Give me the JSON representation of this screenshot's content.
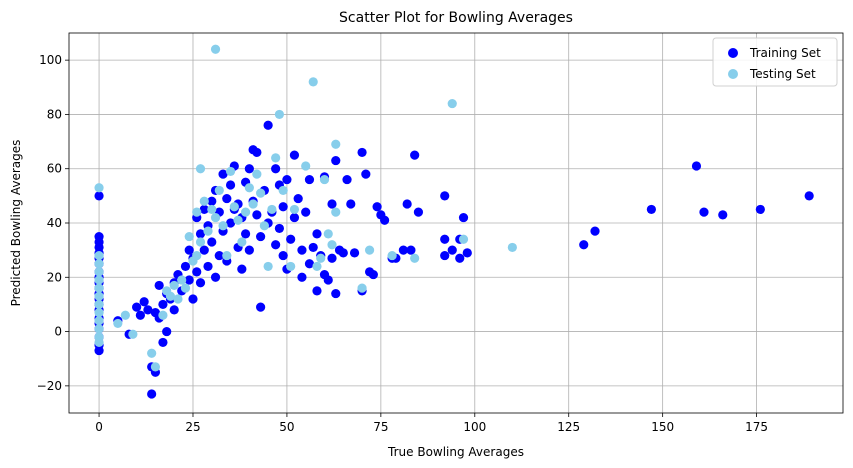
{
  "chart_data": {
    "type": "scatter",
    "title": "Scatter Plot for Bowling Averages",
    "xlabel": "True Bowling Averages",
    "ylabel": "Predicted Bowling Averages",
    "xlim": [
      -8,
      198
    ],
    "ylim": [
      -30,
      110
    ],
    "xticks": [
      0,
      25,
      50,
      75,
      100,
      125,
      150,
      175
    ],
    "yticks": [
      -20,
      0,
      20,
      40,
      60,
      80,
      100
    ],
    "grid": true,
    "legend_position": "top-right",
    "series": [
      {
        "name": "Training Set",
        "color": "#0000ff",
        "points": [
          [
            0,
            50
          ],
          [
            0,
            35
          ],
          [
            0,
            33
          ],
          [
            0,
            31
          ],
          [
            0,
            29
          ],
          [
            0,
            27
          ],
          [
            0,
            25
          ],
          [
            0,
            22
          ],
          [
            0,
            20
          ],
          [
            0,
            18
          ],
          [
            0,
            16
          ],
          [
            0,
            14
          ],
          [
            0,
            12
          ],
          [
            0,
            10
          ],
          [
            0,
            8
          ],
          [
            0,
            5
          ],
          [
            0,
            3
          ],
          [
            0,
            1
          ],
          [
            0,
            -2
          ],
          [
            0,
            -5
          ],
          [
            0,
            -7
          ],
          [
            5,
            4
          ],
          [
            8,
            -1
          ],
          [
            10,
            9
          ],
          [
            11,
            6
          ],
          [
            12,
            11
          ],
          [
            13,
            8
          ],
          [
            14,
            -13
          ],
          [
            14,
            -23
          ],
          [
            15,
            -15
          ],
          [
            15,
            7
          ],
          [
            16,
            5
          ],
          [
            16,
            17
          ],
          [
            17,
            -4
          ],
          [
            17,
            10
          ],
          [
            18,
            0
          ],
          [
            18,
            14
          ],
          [
            19,
            12
          ],
          [
            20,
            18
          ],
          [
            20,
            8
          ],
          [
            21,
            21
          ],
          [
            22,
            15
          ],
          [
            23,
            24
          ],
          [
            24,
            30
          ],
          [
            24,
            19
          ],
          [
            25,
            27
          ],
          [
            25,
            12
          ],
          [
            26,
            42
          ],
          [
            26,
            22
          ],
          [
            27,
            36
          ],
          [
            27,
            18
          ],
          [
            28,
            45
          ],
          [
            28,
            30
          ],
          [
            29,
            39
          ],
          [
            29,
            24
          ],
          [
            30,
            48
          ],
          [
            30,
            33
          ],
          [
            31,
            52
          ],
          [
            31,
            20
          ],
          [
            32,
            44
          ],
          [
            32,
            28
          ],
          [
            33,
            58
          ],
          [
            33,
            37
          ],
          [
            34,
            49
          ],
          [
            34,
            26
          ],
          [
            35,
            54
          ],
          [
            35,
            40
          ],
          [
            36,
            61
          ],
          [
            36,
            45
          ],
          [
            37,
            47
          ],
          [
            37,
            31
          ],
          [
            38,
            42
          ],
          [
            38,
            23
          ],
          [
            39,
            55
          ],
          [
            39,
            36
          ],
          [
            40,
            60
          ],
          [
            40,
            30
          ],
          [
            41,
            67
          ],
          [
            41,
            48
          ],
          [
            42,
            66
          ],
          [
            42,
            43
          ],
          [
            43,
            9
          ],
          [
            43,
            35
          ],
          [
            44,
            52
          ],
          [
            45,
            40
          ],
          [
            45,
            76
          ],
          [
            46,
            44
          ],
          [
            47,
            60
          ],
          [
            47,
            32
          ],
          [
            48,
            54
          ],
          [
            48,
            38
          ],
          [
            49,
            28
          ],
          [
            49,
            46
          ],
          [
            50,
            56
          ],
          [
            50,
            23
          ],
          [
            51,
            34
          ],
          [
            52,
            65
          ],
          [
            52,
            42
          ],
          [
            53,
            49
          ],
          [
            54,
            30
          ],
          [
            54,
            20
          ],
          [
            55,
            44
          ],
          [
            56,
            56
          ],
          [
            56,
            25
          ],
          [
            57,
            31
          ],
          [
            58,
            36
          ],
          [
            58,
            15
          ],
          [
            59,
            28
          ],
          [
            60,
            57
          ],
          [
            60,
            21
          ],
          [
            61,
            19
          ],
          [
            62,
            47
          ],
          [
            62,
            27
          ],
          [
            63,
            63
          ],
          [
            63,
            14
          ],
          [
            64,
            30
          ],
          [
            65,
            29
          ],
          [
            66,
            56
          ],
          [
            67,
            47
          ],
          [
            68,
            29
          ],
          [
            70,
            66
          ],
          [
            70,
            15
          ],
          [
            71,
            58
          ],
          [
            72,
            22
          ],
          [
            73,
            21
          ],
          [
            74,
            46
          ],
          [
            75,
            43
          ],
          [
            76,
            41
          ],
          [
            78,
            27
          ],
          [
            79,
            27
          ],
          [
            81,
            30
          ],
          [
            82,
            47
          ],
          [
            83,
            30
          ],
          [
            84,
            65
          ],
          [
            85,
            44
          ],
          [
            92,
            50
          ],
          [
            92,
            34
          ],
          [
            92,
            28
          ],
          [
            94,
            30
          ],
          [
            96,
            34
          ],
          [
            96,
            27
          ],
          [
            97,
            42
          ],
          [
            98,
            29
          ],
          [
            129,
            32
          ],
          [
            132,
            37
          ],
          [
            147,
            45
          ],
          [
            159,
            61
          ],
          [
            161,
            44
          ],
          [
            166,
            43
          ],
          [
            176,
            45
          ],
          [
            189,
            50
          ]
        ]
      },
      {
        "name": "Testing Set",
        "color": "#87ceeb",
        "points": [
          [
            0,
            53
          ],
          [
            0,
            28
          ],
          [
            0,
            25
          ],
          [
            0,
            22
          ],
          [
            0,
            19
          ],
          [
            0,
            16
          ],
          [
            0,
            13
          ],
          [
            0,
            10
          ],
          [
            0,
            7
          ],
          [
            0,
            4
          ],
          [
            0,
            1
          ],
          [
            0,
            -2
          ],
          [
            0,
            -4
          ],
          [
            5,
            3
          ],
          [
            7,
            6
          ],
          [
            9,
            -1
          ],
          [
            14,
            -8
          ],
          [
            15,
            -13
          ],
          [
            17,
            6
          ],
          [
            18,
            15
          ],
          [
            19,
            13
          ],
          [
            20,
            17
          ],
          [
            21,
            12
          ],
          [
            22,
            19
          ],
          [
            23,
            16
          ],
          [
            24,
            35
          ],
          [
            25,
            26
          ],
          [
            26,
            44
          ],
          [
            26,
            28
          ],
          [
            27,
            60
          ],
          [
            27,
            33
          ],
          [
            28,
            48
          ],
          [
            29,
            37
          ],
          [
            30,
            45
          ],
          [
            31,
            104
          ],
          [
            31,
            42
          ],
          [
            32,
            52
          ],
          [
            33,
            39
          ],
          [
            34,
            28
          ],
          [
            35,
            59
          ],
          [
            36,
            46
          ],
          [
            37,
            41
          ],
          [
            38,
            33
          ],
          [
            39,
            44
          ],
          [
            40,
            53
          ],
          [
            41,
            47
          ],
          [
            42,
            58
          ],
          [
            43,
            51
          ],
          [
            44,
            39
          ],
          [
            45,
            24
          ],
          [
            46,
            45
          ],
          [
            47,
            64
          ],
          [
            48,
            80
          ],
          [
            49,
            52
          ],
          [
            51,
            24
          ],
          [
            52,
            45
          ],
          [
            55,
            61
          ],
          [
            57,
            92
          ],
          [
            58,
            24
          ],
          [
            59,
            27
          ],
          [
            60,
            56
          ],
          [
            61,
            36
          ],
          [
            62,
            32
          ],
          [
            63,
            69
          ],
          [
            63,
            44
          ],
          [
            70,
            16
          ],
          [
            72,
            30
          ],
          [
            78,
            28
          ],
          [
            84,
            27
          ],
          [
            94,
            84
          ],
          [
            97,
            34
          ],
          [
            110,
            31
          ]
        ]
      }
    ]
  }
}
